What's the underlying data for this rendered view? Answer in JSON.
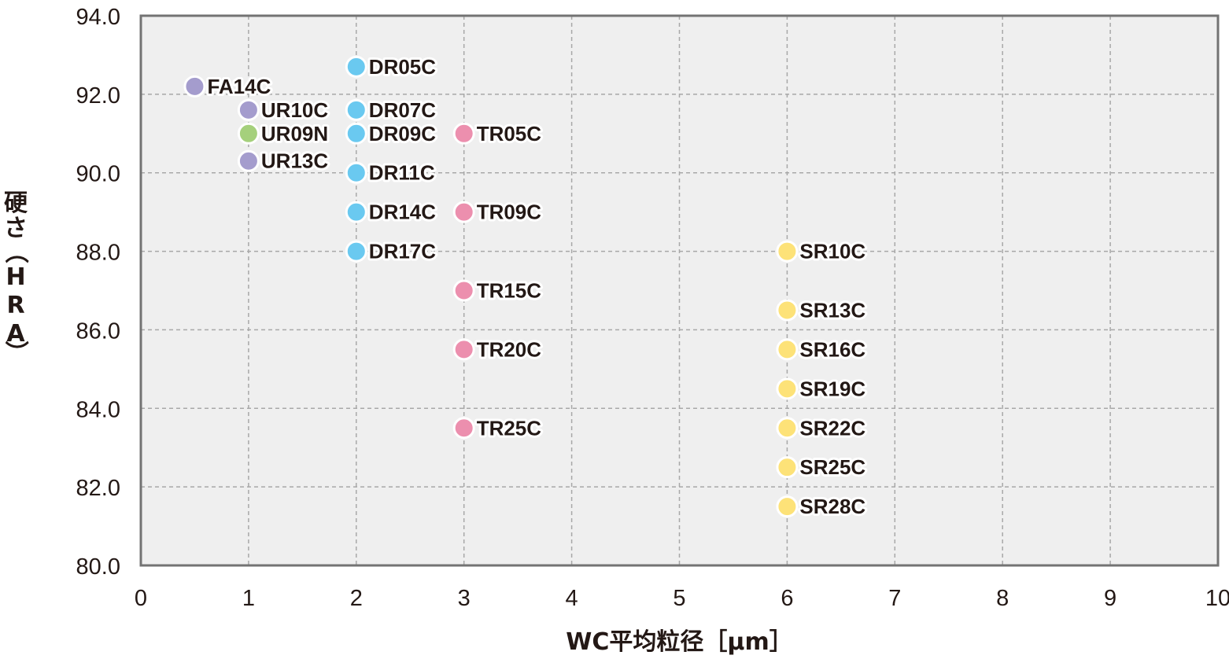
{
  "chart_data": {
    "type": "scatter",
    "xlabel": "WC平均粒径［μm］",
    "ylabel_chars": [
      "硬",
      "さ",
      "（",
      "H",
      "R",
      "A",
      "）"
    ],
    "xlim": [
      0,
      10
    ],
    "ylim": [
      80,
      94
    ],
    "x_ticks": [
      "0",
      "1",
      "2",
      "3",
      "4",
      "5",
      "6",
      "7",
      "8",
      "9",
      "10"
    ],
    "y_ticks": [
      "80.0",
      "82.0",
      "84.0",
      "86.0",
      "88.0",
      "90.0",
      "92.0",
      "94.0"
    ],
    "grid": true,
    "colors": {
      "purple": "#a49ccd",
      "green": "#a5d07c",
      "blue": "#6ac9f0",
      "pink": "#ec8fae",
      "yellow": "#fde278",
      "plot_bg": "#efefef",
      "frame": "#737373",
      "grid": "#a8a8a8"
    },
    "points": [
      {
        "label": "FA14C",
        "x": 0.5,
        "y": 92.2,
        "color": "purple"
      },
      {
        "label": "UR10C",
        "x": 1.0,
        "y": 91.6,
        "color": "purple"
      },
      {
        "label": "UR09N",
        "x": 1.0,
        "y": 91.0,
        "color": "green"
      },
      {
        "label": "UR13C",
        "x": 1.0,
        "y": 90.3,
        "color": "purple"
      },
      {
        "label": "DR05C",
        "x": 2.0,
        "y": 92.7,
        "color": "blue"
      },
      {
        "label": "DR07C",
        "x": 2.0,
        "y": 91.6,
        "color": "blue"
      },
      {
        "label": "DR09C",
        "x": 2.0,
        "y": 91.0,
        "color": "blue"
      },
      {
        "label": "DR11C",
        "x": 2.0,
        "y": 90.0,
        "color": "blue"
      },
      {
        "label": "DR14C",
        "x": 2.0,
        "y": 89.0,
        "color": "blue"
      },
      {
        "label": "DR17C",
        "x": 2.0,
        "y": 88.0,
        "color": "blue"
      },
      {
        "label": "TR05C",
        "x": 3.0,
        "y": 91.0,
        "color": "pink"
      },
      {
        "label": "TR09C",
        "x": 3.0,
        "y": 89.0,
        "color": "pink"
      },
      {
        "label": "TR15C",
        "x": 3.0,
        "y": 87.0,
        "color": "pink"
      },
      {
        "label": "TR20C",
        "x": 3.0,
        "y": 85.5,
        "color": "pink"
      },
      {
        "label": "TR25C",
        "x": 3.0,
        "y": 83.5,
        "color": "pink"
      },
      {
        "label": "SR10C",
        "x": 6.0,
        "y": 88.0,
        "color": "yellow"
      },
      {
        "label": "SR13C",
        "x": 6.0,
        "y": 86.5,
        "color": "yellow"
      },
      {
        "label": "SR16C",
        "x": 6.0,
        "y": 85.5,
        "color": "yellow"
      },
      {
        "label": "SR19C",
        "x": 6.0,
        "y": 84.5,
        "color": "yellow"
      },
      {
        "label": "SR22C",
        "x": 6.0,
        "y": 83.5,
        "color": "yellow"
      },
      {
        "label": "SR25C",
        "x": 6.0,
        "y": 82.5,
        "color": "yellow"
      },
      {
        "label": "SR28C",
        "x": 6.0,
        "y": 81.5,
        "color": "yellow"
      }
    ]
  }
}
